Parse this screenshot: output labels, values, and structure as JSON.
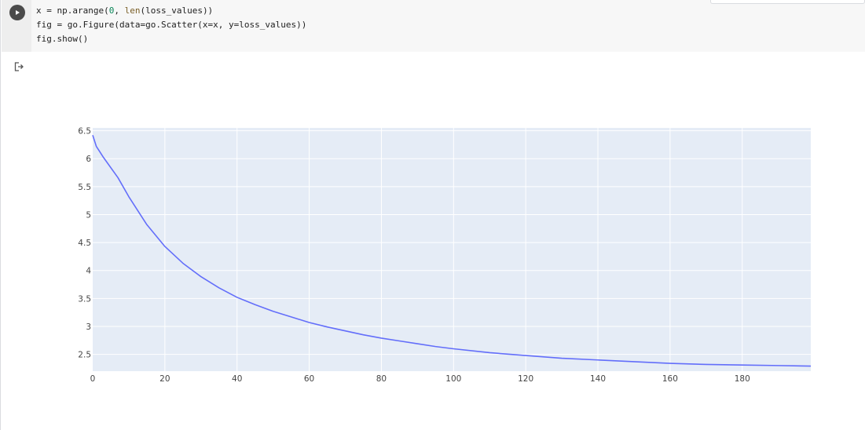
{
  "code_cell": {
    "lines": [
      {
        "parts": [
          {
            "t": "x = np.arange(",
            "c": ""
          },
          {
            "t": "0",
            "c": "num"
          },
          {
            "t": ", ",
            "c": ""
          },
          {
            "t": "len",
            "c": "fn"
          },
          {
            "t": "(loss_values))",
            "c": ""
          }
        ]
      },
      {
        "parts": [
          {
            "t": "fig = go.Figure(data=go.Scatter(x=x, y=loss_values))",
            "c": ""
          }
        ]
      },
      {
        "parts": [
          {
            "t": "fig.show()",
            "c": ""
          }
        ]
      }
    ],
    "run_icon": "play-icon",
    "output_icon": "output-redirect-icon"
  },
  "colors": {
    "plot_bg": "#e5ecf6",
    "grid": "#ffffff",
    "line": "#636efa"
  },
  "chart_data": {
    "type": "line",
    "title": "",
    "xlabel": "",
    "ylabel": "",
    "xlim": [
      0,
      199
    ],
    "ylim": [
      2.2,
      6.55
    ],
    "grid": true,
    "x_ticks": [
      0,
      20,
      40,
      60,
      80,
      100,
      120,
      140,
      160,
      180
    ],
    "x_tick_labels": [
      "0",
      "20",
      "40",
      "60",
      "80",
      "100",
      "120",
      "140",
      "160",
      "180"
    ],
    "y_ticks": [
      2.5,
      3,
      3.5,
      4,
      4.5,
      5,
      5.5,
      6,
      6.5
    ],
    "y_tick_labels": [
      "2.5",
      "3",
      "3.5",
      "4",
      "4.5",
      "5",
      "5.5",
      "6",
      "6.5"
    ],
    "series": [
      {
        "x": [
          0,
          1,
          3,
          7,
          10,
          15,
          20,
          25,
          30,
          35,
          40,
          45,
          50,
          55,
          60,
          65,
          70,
          75,
          80,
          85,
          90,
          95,
          100,
          110,
          120,
          130,
          140,
          150,
          160,
          170,
          180,
          190,
          199
        ],
        "values": [
          6.42,
          6.22,
          6.02,
          5.66,
          5.32,
          4.82,
          4.43,
          4.13,
          3.89,
          3.69,
          3.52,
          3.39,
          3.27,
          3.17,
          3.07,
          2.99,
          2.92,
          2.85,
          2.79,
          2.74,
          2.69,
          2.64,
          2.6,
          2.53,
          2.48,
          2.43,
          2.4,
          2.37,
          2.34,
          2.32,
          2.31,
          2.3,
          2.29
        ]
      }
    ]
  }
}
